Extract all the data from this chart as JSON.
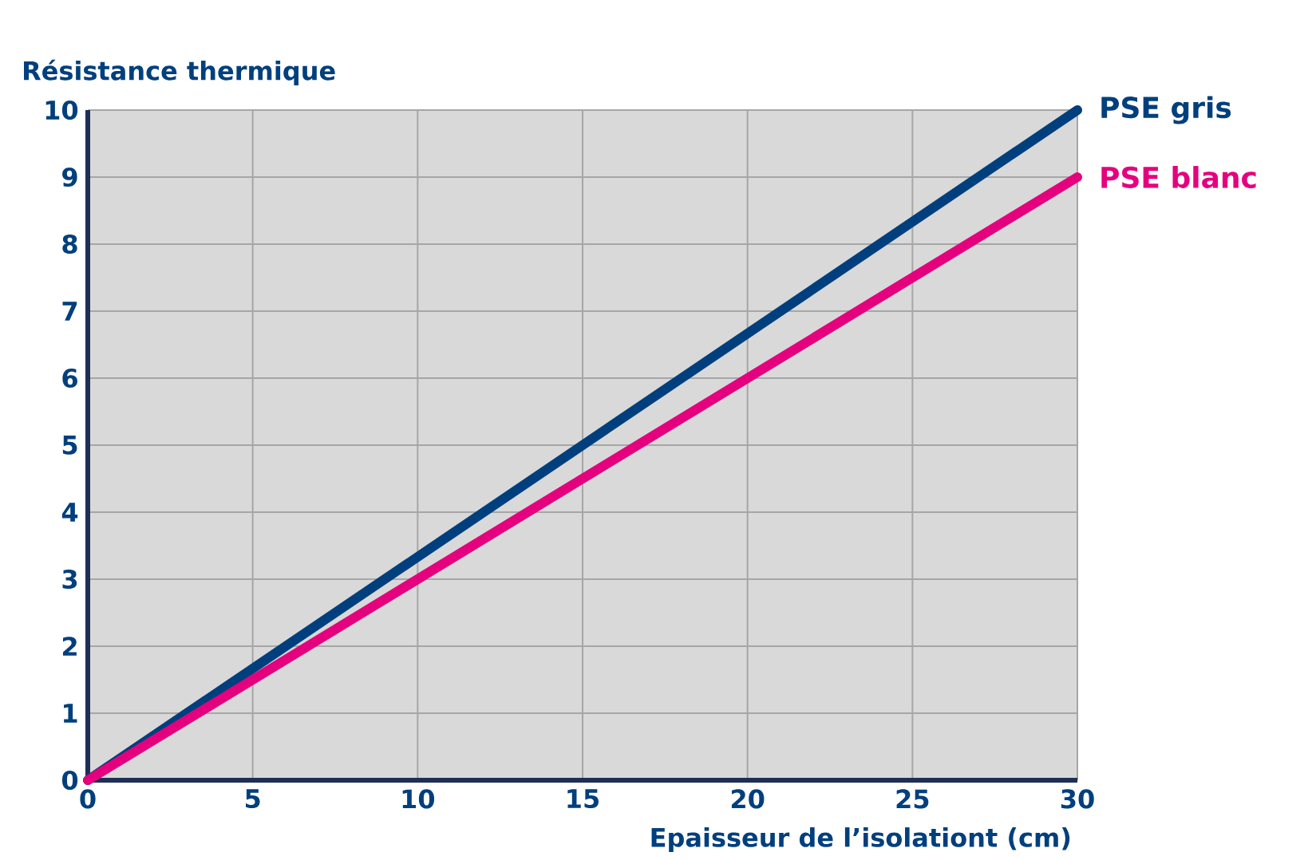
{
  "chart_data": {
    "type": "line",
    "xlabel": "Epaisseur de l’isolationt (cm)",
    "ylabel": "Résistance thermique",
    "x": [
      0,
      30
    ],
    "series": [
      {
        "name": "PSE gris",
        "color": "#003f7d",
        "values": [
          0,
          10
        ]
      },
      {
        "name": "PSE blanc",
        "color": "#e5007e",
        "values": [
          0,
          9
        ]
      }
    ],
    "xlim": [
      0,
      30
    ],
    "ylim": [
      0,
      10
    ],
    "xticks": [
      0,
      5,
      10,
      15,
      20,
      25,
      30
    ],
    "yticks": [
      0,
      1,
      2,
      3,
      4,
      5,
      6,
      7,
      8,
      9,
      10
    ],
    "grid": true,
    "marker": "none",
    "line_style": "solid"
  }
}
